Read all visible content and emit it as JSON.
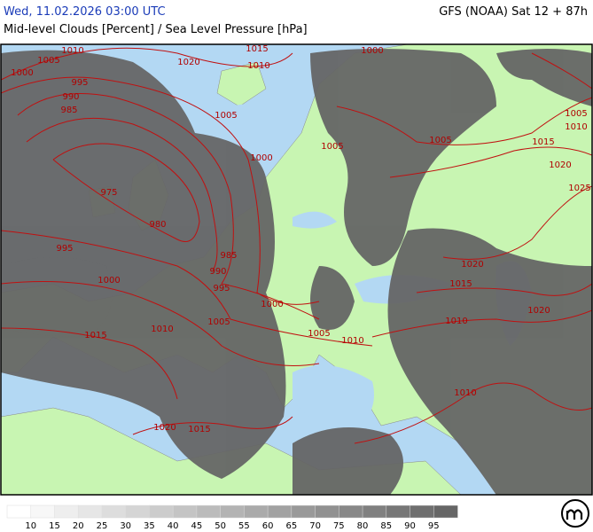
{
  "header": {
    "left": "Wed, 11.02.2026 03:00 UTC",
    "right": "GFS (NOAA) Sat 12 + 87h",
    "subtitle": "Mid-level Clouds [Percent] / Sea Level Pressure [hPa]"
  },
  "isobar_labels": [
    1010,
    1015,
    1000,
    1005,
    1020,
    1010,
    1000,
    995,
    990,
    985,
    1005,
    1005,
    1010,
    1005,
    1005,
    1015,
    1000,
    1020,
    1025,
    975,
    980,
    995,
    985,
    1020,
    990,
    1000,
    1015,
    995,
    1000,
    1020,
    1005,
    1010,
    1010,
    1015,
    1005,
    1010,
    1010,
    1020,
    1015
  ],
  "legend": {
    "values": [
      10,
      15,
      20,
      25,
      30,
      35,
      40,
      45,
      50,
      55,
      60,
      65,
      70,
      75,
      80,
      85,
      90,
      95
    ]
  }
}
